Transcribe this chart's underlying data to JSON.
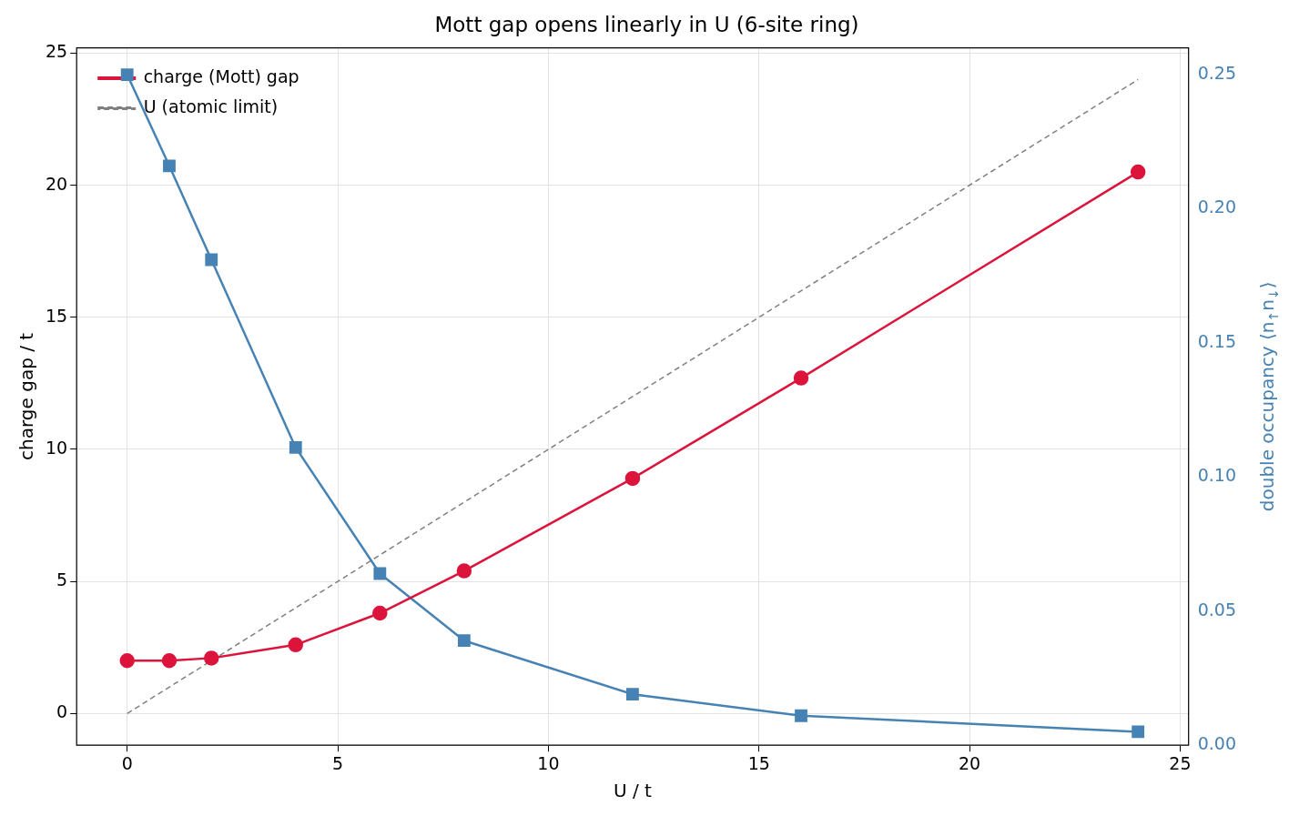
{
  "chart_data": {
    "type": "line",
    "title": "Mott gap opens linearly in U (6-site ring)",
    "xlabel": "U / t",
    "ylabel": "charge gap / t",
    "y2label": "double occupancy ⟨n$_{↑}$n$_{↓}$⟩",
    "x": [
      0,
      1,
      2,
      4,
      6,
      8,
      12,
      16,
      24
    ],
    "xlim": [
      -1.2,
      25.2
    ],
    "xticks": [
      0,
      5,
      10,
      15,
      20,
      25
    ],
    "ylim": [
      -1.2,
      25.2
    ],
    "yticks": [
      0,
      5,
      10,
      15,
      20,
      25
    ],
    "y2lim": [
      0,
      0.26
    ],
    "y2ticks": [
      {
        "value": 0,
        "label": "0.00"
      },
      {
        "value": 0.05,
        "label": "0.05"
      },
      {
        "value": 0.1,
        "label": "0.10"
      },
      {
        "value": 0.15,
        "label": "0.15"
      },
      {
        "value": 0.2,
        "label": "0.20"
      },
      {
        "value": 0.25,
        "label": "0.25"
      }
    ],
    "grid": true,
    "legend": "top left",
    "series": [
      {
        "name": "charge (Mott) gap",
        "color": "#dc143c",
        "marker": "circle",
        "line_style": "solid",
        "values": [
          2.0,
          2.0,
          2.1,
          2.6,
          3.8,
          5.4,
          8.9,
          12.7,
          20.5
        ]
      },
      {
        "color": "#4682b4",
        "marker": "square",
        "line_style": "solid",
        "axis": "y2",
        "values": [
          0.25,
          0.216,
          0.181,
          0.111,
          0.064,
          0.039,
          0.019,
          0.011,
          0.005
        ]
      },
      {
        "name": "U (atomic limit)",
        "color": "#808080",
        "marker": "none",
        "line_style": "dashed",
        "x": [
          0,
          24
        ],
        "values": [
          0,
          24
        ]
      }
    ]
  }
}
